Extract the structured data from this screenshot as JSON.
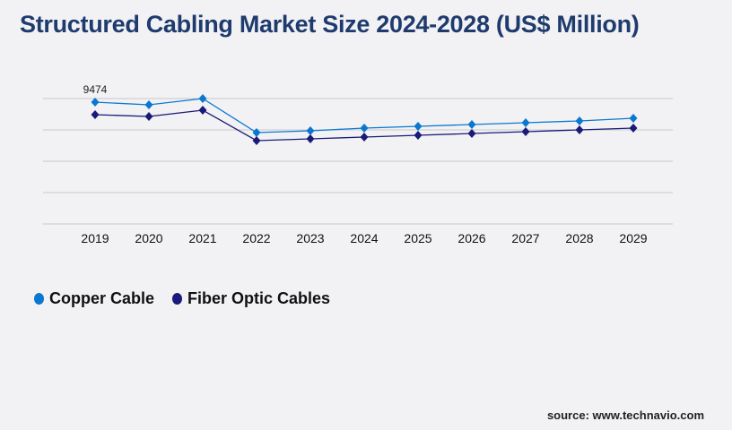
{
  "title": "Structured Cabling Market Size 2024-2028 (US$ Million)",
  "source": "source: www.technavio.com",
  "chart_data": {
    "type": "line",
    "title": "Structured Cabling Market Size 2024-2028 (US$ Million)",
    "xlabel": "",
    "ylabel": "",
    "categories": [
      "2019",
      "2020",
      "2021",
      "2022",
      "2023",
      "2024",
      "2025",
      "2026",
      "2027",
      "2028",
      "2029"
    ],
    "ylim": [
      0,
      9752
    ],
    "grid": true,
    "legend_position": "bottom-left",
    "series": [
      {
        "name": "Copper Cable",
        "color": "#0a78d0",
        "values": [
          9474,
          9265,
          9752,
          7105,
          7245,
          7454,
          7593,
          7732,
          7872,
          8011,
          8220
        ]
      },
      {
        "name": "Fiber Optic Cables",
        "color": "#1a1a78",
        "values": [
          8499,
          8359,
          8847,
          6478,
          6618,
          6757,
          6896,
          7036,
          7175,
          7314,
          7454
        ]
      }
    ],
    "data_labels": [
      {
        "series": "Copper Cable",
        "category": "2019",
        "text": "9474"
      }
    ]
  }
}
